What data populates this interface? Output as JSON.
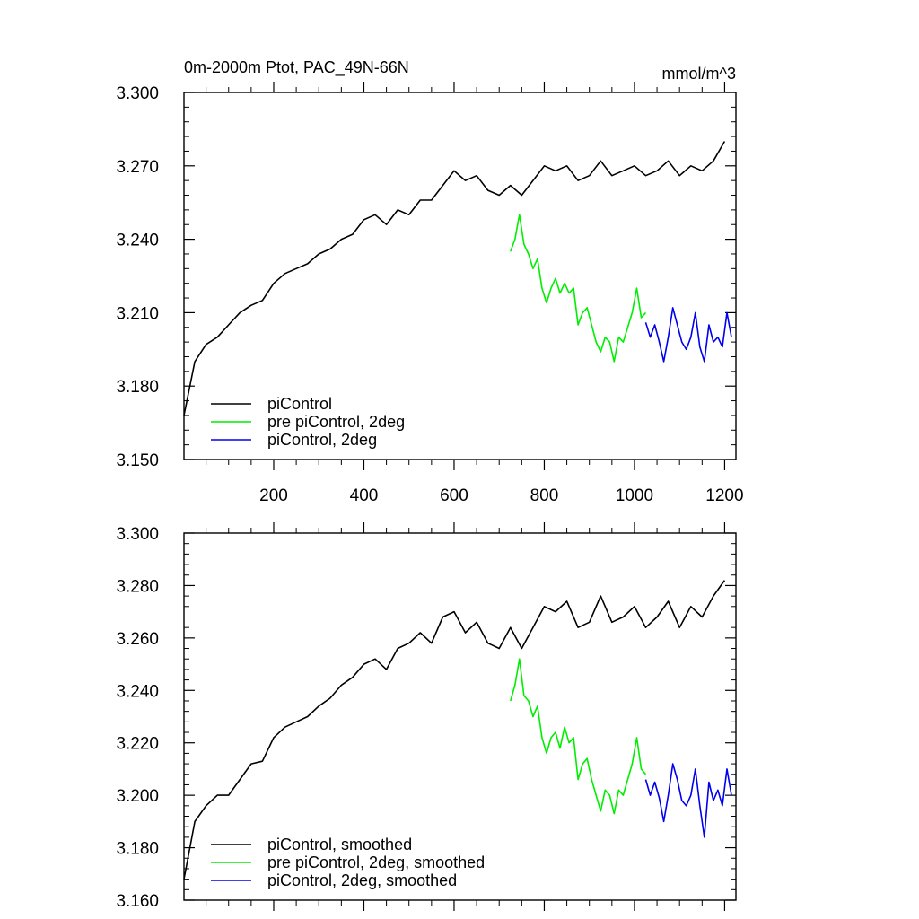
{
  "figure": {
    "title_left": "0m-2000m Ptot, PAC_49N-66N",
    "title_right": "mmol/m^3"
  },
  "chart_data": [
    {
      "type": "line",
      "title": "0m-2000m Ptot, PAC_49N-66N",
      "units": "mmol/m^3",
      "xlim": [
        1,
        1225
      ],
      "ylim": [
        3.15,
        3.3
      ],
      "xticks": [
        200,
        400,
        600,
        800,
        1000,
        1200
      ],
      "xtick_labels": [
        "200",
        "400",
        "600",
        "800",
        "1000",
        "1200"
      ],
      "yticks": [
        3.15,
        3.18,
        3.21,
        3.24,
        3.27,
        3.3
      ],
      "ytick_labels": [
        "3.150",
        "3.180",
        "3.210",
        "3.240",
        "3.270",
        "3.300"
      ],
      "legend_position": "bottom-left",
      "series": [
        {
          "name": "piControl",
          "color": "#000000",
          "x": [
            1,
            25,
            50,
            75,
            100,
            125,
            150,
            175,
            200,
            225,
            250,
            275,
            300,
            325,
            350,
            375,
            400,
            425,
            450,
            475,
            500,
            525,
            550,
            575,
            600,
            625,
            650,
            675,
            700,
            725,
            750,
            775,
            800,
            825,
            850,
            875,
            900,
            925,
            950,
            975,
            1000,
            1025,
            1050,
            1075,
            1100,
            1125,
            1150,
            1175,
            1200
          ],
          "y": [
            3.168,
            3.19,
            3.197,
            3.2,
            3.205,
            3.21,
            3.213,
            3.215,
            3.222,
            3.226,
            3.228,
            3.23,
            3.234,
            3.236,
            3.24,
            3.242,
            3.248,
            3.25,
            3.246,
            3.252,
            3.25,
            3.256,
            3.256,
            3.262,
            3.268,
            3.264,
            3.266,
            3.26,
            3.258,
            3.262,
            3.258,
            3.264,
            3.27,
            3.268,
            3.27,
            3.264,
            3.266,
            3.272,
            3.266,
            3.268,
            3.27,
            3.266,
            3.268,
            3.272,
            3.266,
            3.27,
            3.268,
            3.272,
            3.28
          ]
        },
        {
          "name": "pre piControl, 2deg",
          "color": "#00ee00",
          "x": [
            725,
            735,
            745,
            755,
            765,
            775,
            785,
            795,
            805,
            815,
            825,
            835,
            845,
            855,
            865,
            875,
            885,
            895,
            905,
            915,
            925,
            935,
            945,
            955,
            965,
            975,
            985,
            995,
            1005,
            1015,
            1025
          ],
          "y": [
            3.235,
            3.24,
            3.25,
            3.238,
            3.234,
            3.228,
            3.232,
            3.22,
            3.214,
            3.22,
            3.224,
            3.218,
            3.222,
            3.218,
            3.22,
            3.205,
            3.21,
            3.212,
            3.205,
            3.198,
            3.194,
            3.2,
            3.198,
            3.19,
            3.2,
            3.198,
            3.204,
            3.21,
            3.22,
            3.208,
            3.21
          ]
        },
        {
          "name": "piControl, 2deg",
          "color": "#0000ee",
          "x": [
            1025,
            1035,
            1045,
            1055,
            1065,
            1075,
            1085,
            1095,
            1105,
            1115,
            1125,
            1135,
            1145,
            1155,
            1165,
            1175,
            1185,
            1195,
            1205,
            1215
          ],
          "y": [
            3.206,
            3.2,
            3.205,
            3.198,
            3.19,
            3.2,
            3.212,
            3.205,
            3.198,
            3.195,
            3.2,
            3.21,
            3.196,
            3.19,
            3.205,
            3.198,
            3.2,
            3.196,
            3.21,
            3.2
          ]
        }
      ]
    },
    {
      "type": "line",
      "xlim": [
        1,
        1225
      ],
      "ylim": [
        3.16,
        3.3
      ],
      "xticks": [
        200,
        400,
        600,
        800,
        1000,
        1200
      ],
      "yticks": [
        3.16,
        3.18,
        3.2,
        3.22,
        3.24,
        3.26,
        3.28,
        3.3
      ],
      "ytick_labels": [
        "3.160",
        "3.180",
        "3.200",
        "3.220",
        "3.240",
        "3.260",
        "3.280",
        "3.300"
      ],
      "legend_position": "bottom-left",
      "series": [
        {
          "name": "piControl, smoothed",
          "color": "#000000",
          "x": [
            1,
            25,
            50,
            75,
            100,
            125,
            150,
            175,
            200,
            225,
            250,
            275,
            300,
            325,
            350,
            375,
            400,
            425,
            450,
            475,
            500,
            525,
            550,
            575,
            600,
            625,
            650,
            675,
            700,
            725,
            750,
            775,
            800,
            825,
            850,
            875,
            900,
            925,
            950,
            975,
            1000,
            1025,
            1050,
            1075,
            1100,
            1125,
            1150,
            1175,
            1200
          ],
          "y": [
            3.168,
            3.19,
            3.196,
            3.2,
            3.2,
            3.206,
            3.212,
            3.213,
            3.222,
            3.226,
            3.228,
            3.23,
            3.234,
            3.237,
            3.242,
            3.245,
            3.25,
            3.252,
            3.248,
            3.256,
            3.258,
            3.262,
            3.258,
            3.268,
            3.27,
            3.262,
            3.266,
            3.258,
            3.256,
            3.264,
            3.256,
            3.264,
            3.272,
            3.27,
            3.274,
            3.264,
            3.266,
            3.276,
            3.266,
            3.268,
            3.272,
            3.264,
            3.268,
            3.274,
            3.264,
            3.272,
            3.268,
            3.276,
            3.282
          ]
        },
        {
          "name": "pre piControl, 2deg, smoothed",
          "color": "#00ee00",
          "x": [
            725,
            735,
            745,
            755,
            765,
            775,
            785,
            795,
            805,
            815,
            825,
            835,
            845,
            855,
            865,
            875,
            885,
            895,
            905,
            915,
            925,
            935,
            945,
            955,
            965,
            975,
            985,
            995,
            1005,
            1015,
            1025
          ],
          "y": [
            3.236,
            3.242,
            3.252,
            3.238,
            3.236,
            3.23,
            3.234,
            3.222,
            3.216,
            3.222,
            3.224,
            3.218,
            3.226,
            3.22,
            3.222,
            3.206,
            3.212,
            3.214,
            3.206,
            3.2,
            3.194,
            3.202,
            3.2,
            3.193,
            3.202,
            3.2,
            3.206,
            3.212,
            3.222,
            3.21,
            3.208
          ]
        },
        {
          "name": "piControl, 2deg, smoothed",
          "color": "#0000ee",
          "x": [
            1025,
            1035,
            1045,
            1055,
            1065,
            1075,
            1085,
            1095,
            1105,
            1115,
            1125,
            1135,
            1145,
            1155,
            1165,
            1175,
            1185,
            1195,
            1205,
            1215
          ],
          "y": [
            3.206,
            3.2,
            3.205,
            3.199,
            3.19,
            3.2,
            3.212,
            3.206,
            3.198,
            3.196,
            3.2,
            3.21,
            3.196,
            3.184,
            3.205,
            3.198,
            3.202,
            3.196,
            3.21,
            3.2
          ]
        }
      ]
    }
  ]
}
